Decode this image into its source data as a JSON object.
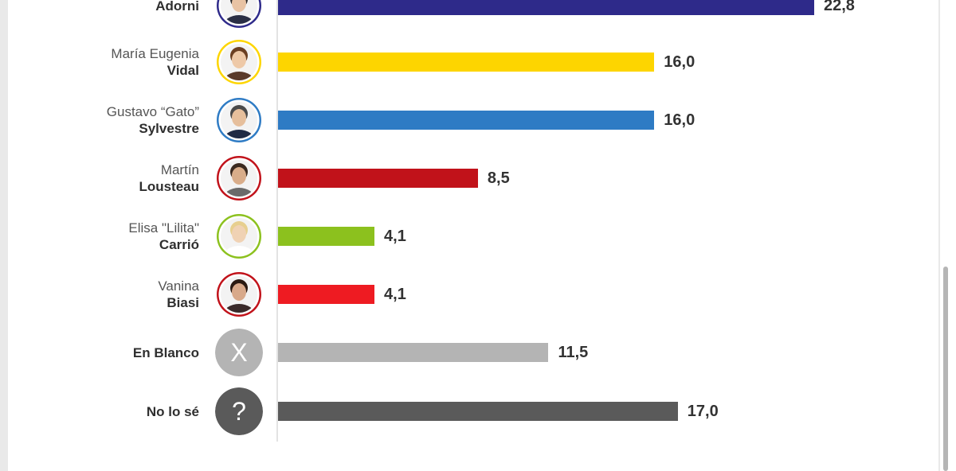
{
  "chart_data": {
    "type": "bar",
    "orientation": "horizontal",
    "categories": [
      {
        "first": "",
        "last": "Adorni"
      },
      {
        "first": "María Eugenia",
        "last": "Vidal"
      },
      {
        "first": "Gustavo “Gato”",
        "last": "Sylvestre"
      },
      {
        "first": "Martín",
        "last": "Lousteau"
      },
      {
        "first": "Elisa \"Lilita\"",
        "last": "Carrió"
      },
      {
        "first": "Vanina",
        "last": "Biasi"
      },
      {
        "first": "",
        "last": "En Blanco"
      },
      {
        "first": "",
        "last": "No lo sé"
      }
    ],
    "values": [
      22.8,
      16.0,
      16.0,
      8.5,
      4.1,
      4.1,
      11.5,
      17.0
    ],
    "value_labels": [
      "22,8",
      "16,0",
      "16,0",
      "8,5",
      "4,1",
      "4,1",
      "11,5",
      "17,0"
    ],
    "colors": [
      "#2e2a8a",
      "#fdd500",
      "#2e7bc4",
      "#c1121a",
      "#8cc11e",
      "#ee1b22",
      "#b4b4b4",
      "#5a5a5a"
    ],
    "avatar_ring_colors": [
      "#2e2a8a",
      "#fdd500",
      "#2e7bc4",
      "#c1121a",
      "#8cc11e",
      "#c1121a",
      "#b4b4b4",
      "#5a5a5a"
    ],
    "icons": [
      "avatar-icon",
      "avatar-icon",
      "avatar-icon",
      "avatar-icon",
      "avatar-icon",
      "avatar-icon",
      "x-icon",
      "question-icon"
    ],
    "icon_glyphs": [
      "",
      "",
      "",
      "",
      "",
      "",
      "X",
      "?"
    ],
    "xlim": [
      0,
      30
    ],
    "title": "",
    "xlabel": "",
    "ylabel": "",
    "grid": false,
    "legend": "none"
  }
}
